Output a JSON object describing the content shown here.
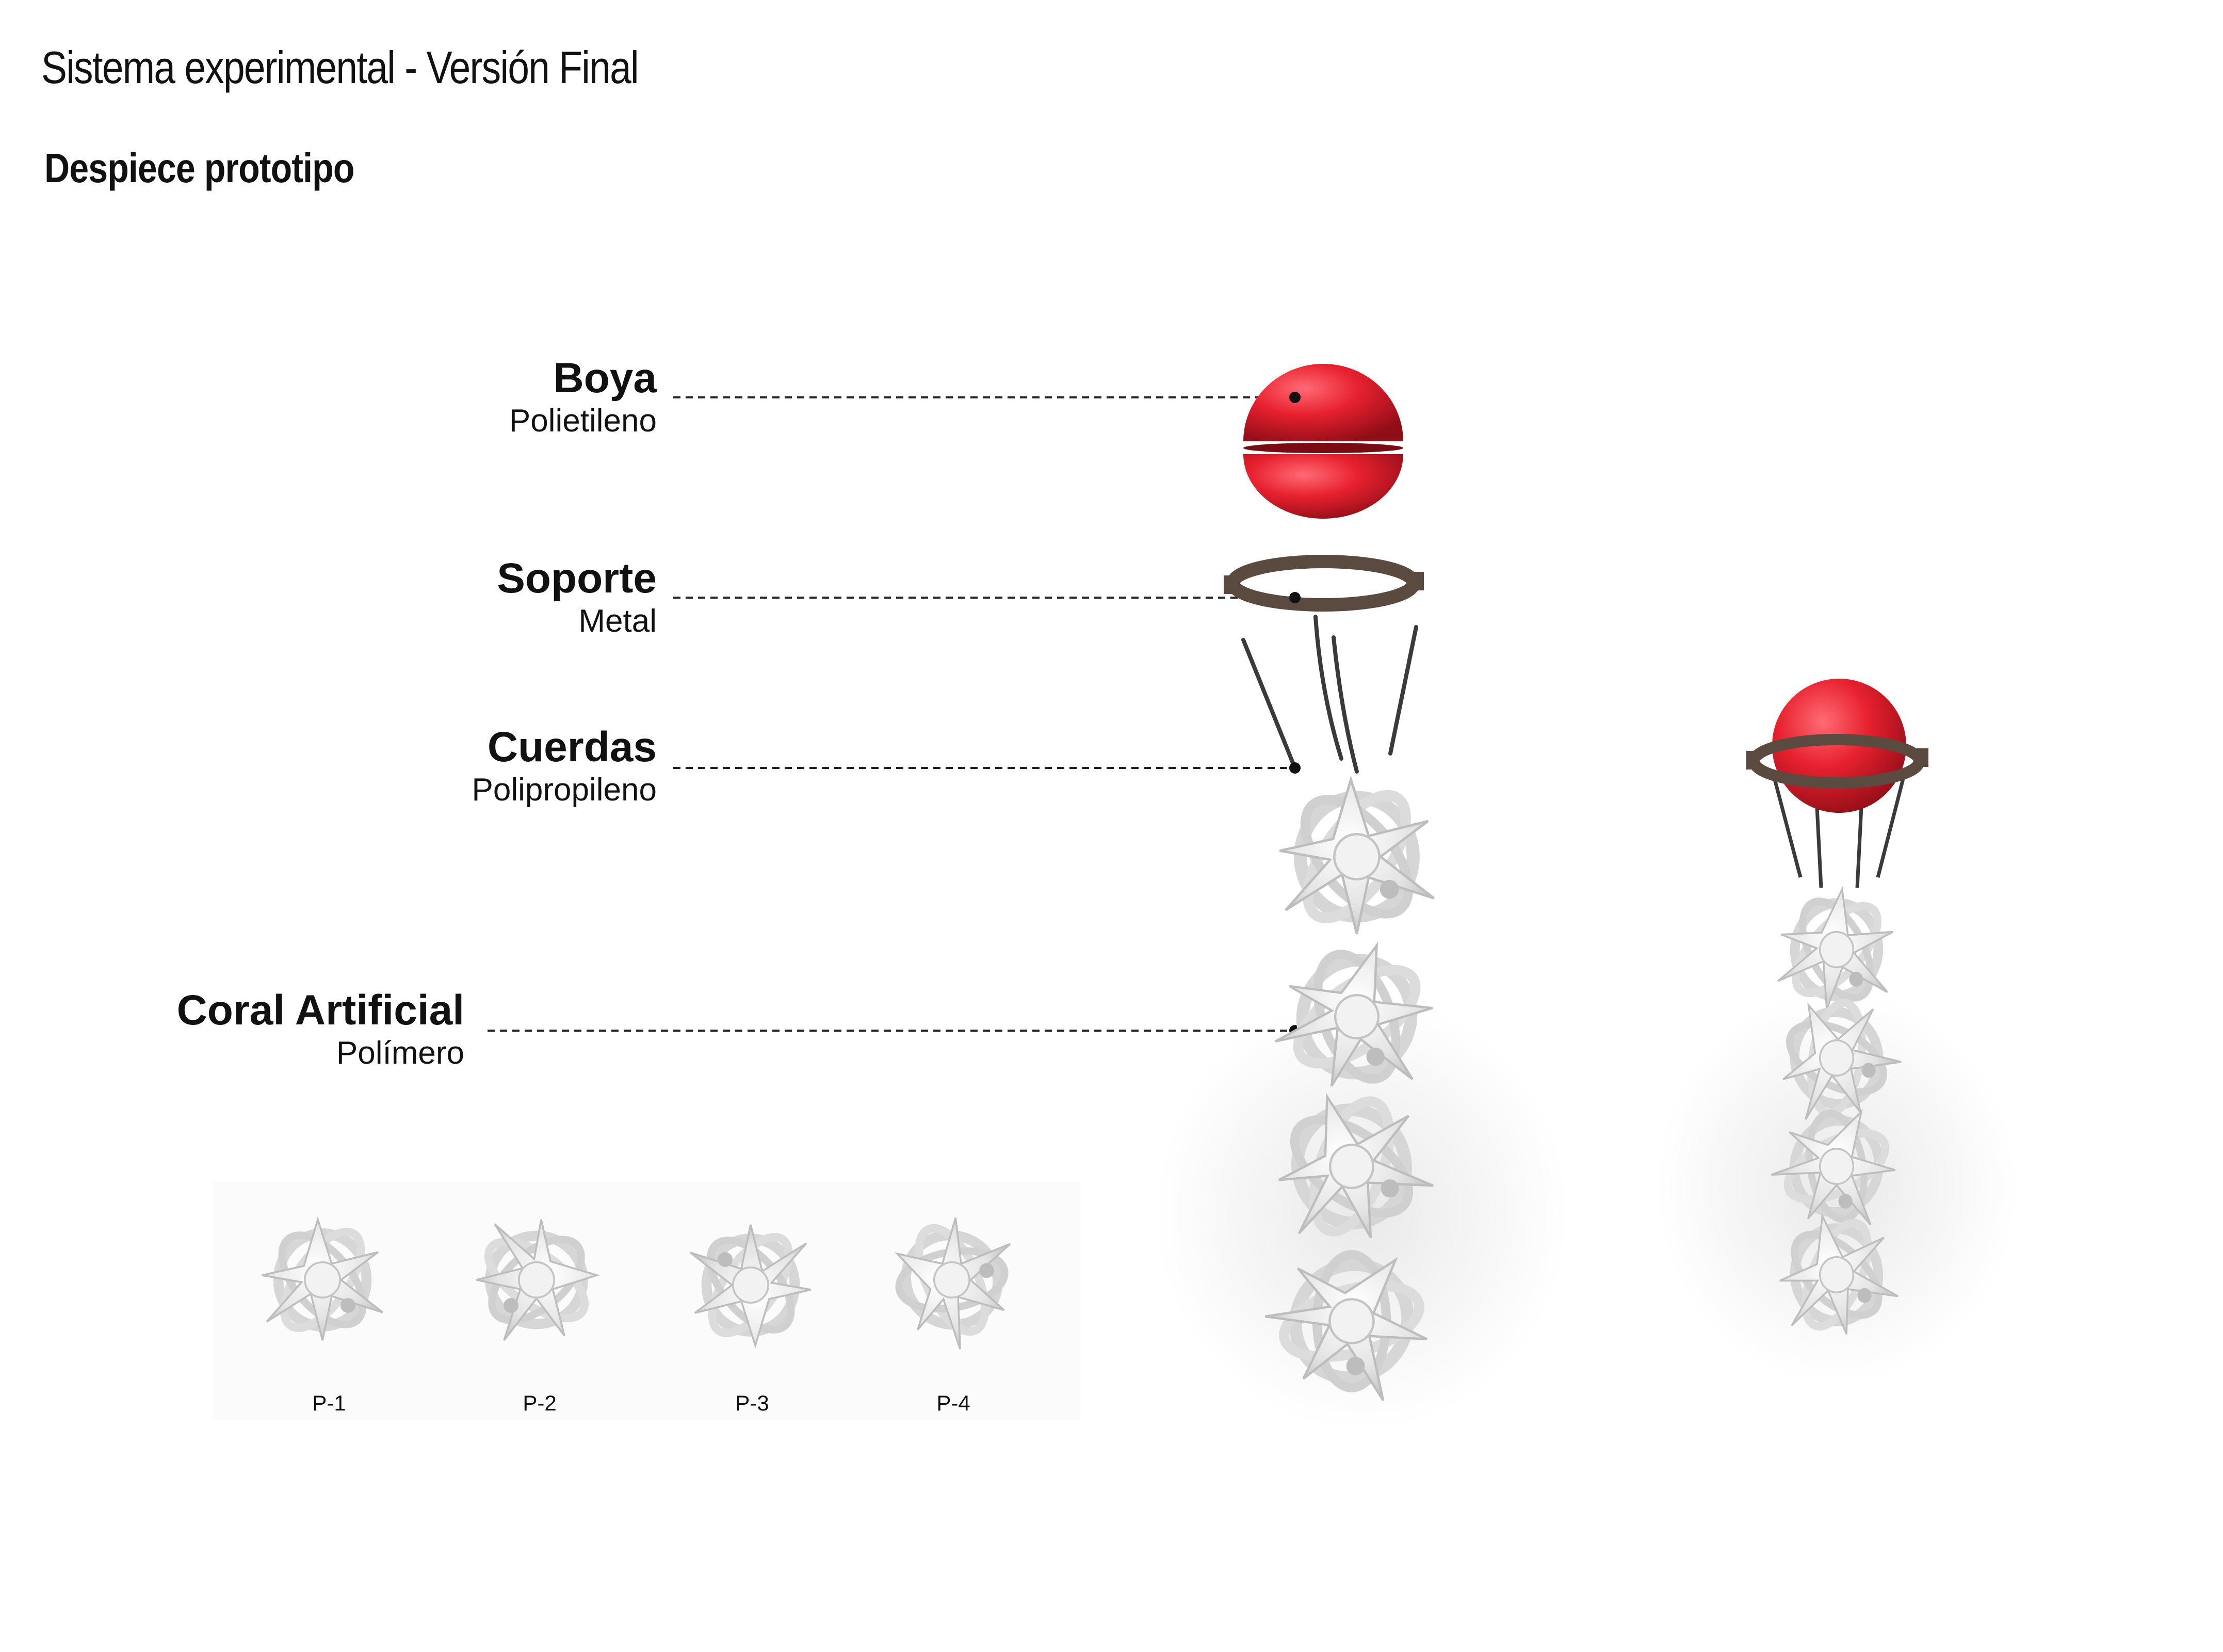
{
  "header": {
    "title": "Sistema experimental - Versión Final",
    "subtitle": "Despiece prototipo"
  },
  "components": [
    {
      "name": "Boya",
      "material": "Polietileno"
    },
    {
      "name": "Soporte",
      "material": "Metal"
    },
    {
      "name": "Cuerdas",
      "material": "Polipropileno"
    },
    {
      "name": "Coral Artificial",
      "material": "Polímero"
    }
  ],
  "pieces": [
    "P-1",
    "P-2",
    "P-3",
    "P-4"
  ],
  "colors": {
    "buoy": "#e8212f",
    "ring": "#5a4a40",
    "coral": "#e6e6e6",
    "leader": "#222222"
  }
}
